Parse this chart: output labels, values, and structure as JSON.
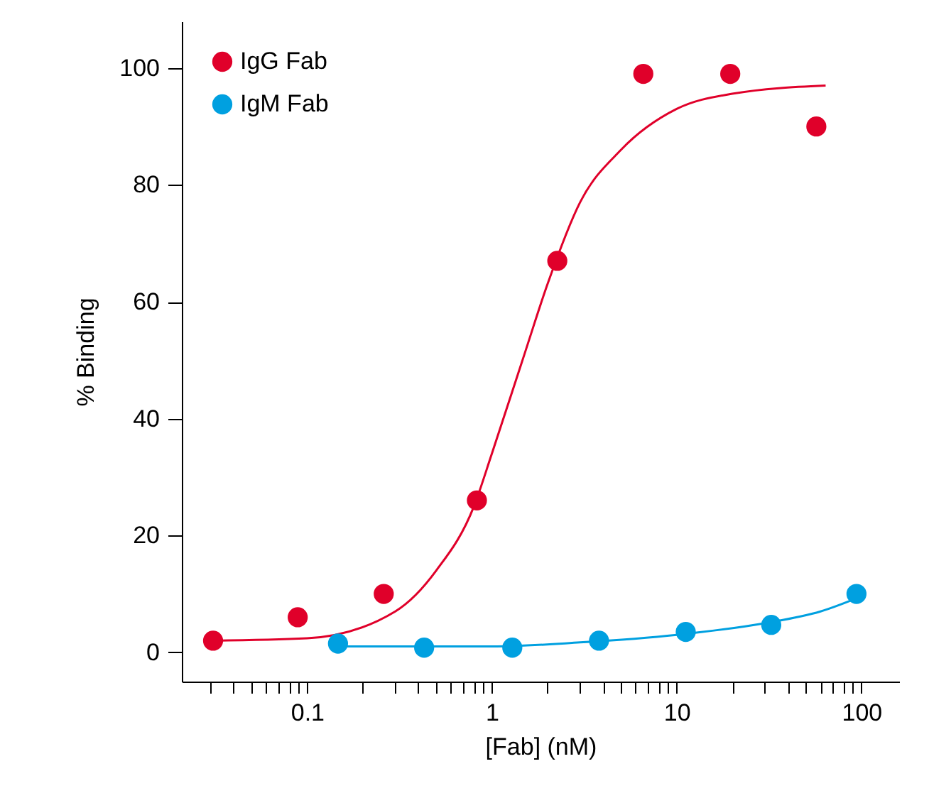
{
  "chart_data": {
    "type": "scatter",
    "xlabel": "[Fab] (nM)",
    "ylabel": "% Binding",
    "log": "x",
    "grid": false,
    "legend": "top left",
    "xlim": [
      0.021,
      160
    ],
    "ylim": [
      -5,
      108
    ],
    "yticks": [
      0,
      20,
      40,
      60,
      80,
      100
    ],
    "xticks": [
      {
        "value": 0.03,
        "label": null
      },
      {
        "value": 0.04,
        "label": null
      },
      {
        "value": 0.05,
        "label": null
      },
      {
        "value": 0.06,
        "label": null
      },
      {
        "value": 0.07,
        "label": null
      },
      {
        "value": 0.08,
        "label": null
      },
      {
        "value": 0.09,
        "label": null
      },
      0.1,
      {
        "value": 0.2,
        "label": null
      },
      {
        "value": 0.3,
        "label": null
      },
      {
        "value": 0.4,
        "label": null
      },
      {
        "value": 0.5,
        "label": null
      },
      {
        "value": 0.6,
        "label": null
      },
      {
        "value": 0.7,
        "label": null
      },
      {
        "value": 0.8,
        "label": null
      },
      {
        "value": 0.9,
        "label": null
      },
      1,
      {
        "value": 2,
        "label": null
      },
      {
        "value": 3,
        "label": null
      },
      {
        "value": 4,
        "label": null
      },
      {
        "value": 5,
        "label": null
      },
      {
        "value": 6,
        "label": null
      },
      {
        "value": 7,
        "label": null
      },
      {
        "value": 8,
        "label": null
      },
      {
        "value": 9,
        "label": null
      },
      10,
      {
        "value": 20,
        "label": null
      },
      {
        "value": 30,
        "label": null
      },
      {
        "value": 40,
        "label": null
      },
      {
        "value": 50,
        "label": null
      },
      {
        "value": 60,
        "label": null
      },
      {
        "value": 70,
        "label": null
      },
      {
        "value": 80,
        "label": null
      },
      {
        "value": 90,
        "label": null
      },
      100
    ],
    "series": [
      {
        "type": "line",
        "marker": "none",
        "color": "#e0002a",
        "x": [
          0.031,
          0.1,
          0.3,
          0.5,
          0.8,
          1,
          1.5,
          2,
          3,
          5,
          10,
          20,
          64
        ],
        "values": [
          2,
          2.4,
          7,
          14,
          25,
          34,
          51,
          63,
          77,
          86,
          93,
          95.6,
          97
        ]
      },
      {
        "type": "line",
        "marker": "none",
        "color": "#00a0e0",
        "x": [
          0.147,
          1,
          3,
          10,
          30,
          60,
          100
        ],
        "values": [
          1,
          1,
          1.7,
          3,
          5,
          7,
          9.6
        ]
      },
      {
        "name": "IgG Fab",
        "marker": "circle",
        "color": "#e0002a",
        "x": [
          0.031,
          0.089,
          0.26,
          0.83,
          2.26,
          6.6,
          19.5,
          57
        ],
        "values": [
          2,
          6,
          10,
          26,
          67,
          99,
          99,
          90
        ]
      },
      {
        "name": "IgM Fab",
        "marker": "circle",
        "color": "#00a0e0",
        "x": [
          0.147,
          0.43,
          1.29,
          3.8,
          11.2,
          32.5,
          94
        ],
        "values": [
          1.5,
          0.8,
          0.8,
          2,
          3.5,
          4.7,
          10
        ]
      }
    ]
  }
}
